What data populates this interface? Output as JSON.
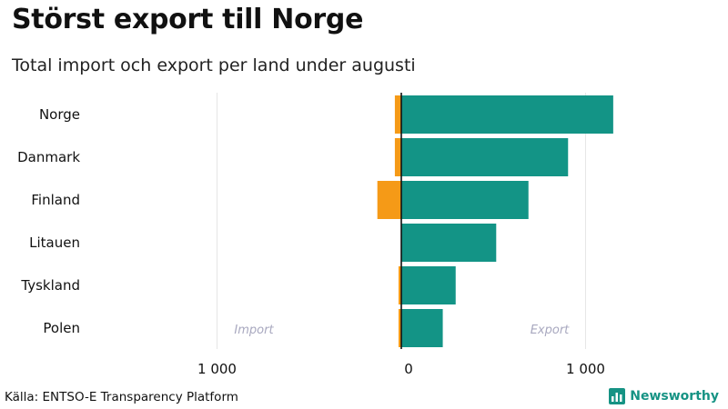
{
  "title": "Störst export till Norge",
  "subtitle": "Total import och export per land under augusti",
  "source": "Källa: ENTSO-E Transparency Platform",
  "brand": {
    "name": "Newsworthy",
    "icon": "newsworthy-logo-icon"
  },
  "colors": {
    "export": "#139486",
    "import": "#F59A17",
    "grid": "#e6e6e6",
    "zero_line": "#111111",
    "annotation": "#a8a8bf"
  },
  "chart_data": {
    "type": "bar",
    "orientation": "horizontal",
    "stacked": "diverging",
    "categories": [
      "Norge",
      "Danmark",
      "Finland",
      "Litauen",
      "Tyskland",
      "Polen"
    ],
    "series": [
      {
        "key": "import",
        "values": [
          -35,
          -35,
          -130,
          0,
          -15,
          -15
        ]
      },
      {
        "key": "export",
        "values": [
          1150,
          905,
          690,
          515,
          295,
          225
        ]
      }
    ],
    "xlim": [
      -1000,
      1150
    ],
    "xticks": [
      -1000,
      0,
      1000
    ],
    "xtick_labels": [
      "1 000",
      "0",
      "1 000"
    ],
    "annotations": {
      "import": "Import",
      "export": "Export"
    },
    "grid": true
  }
}
